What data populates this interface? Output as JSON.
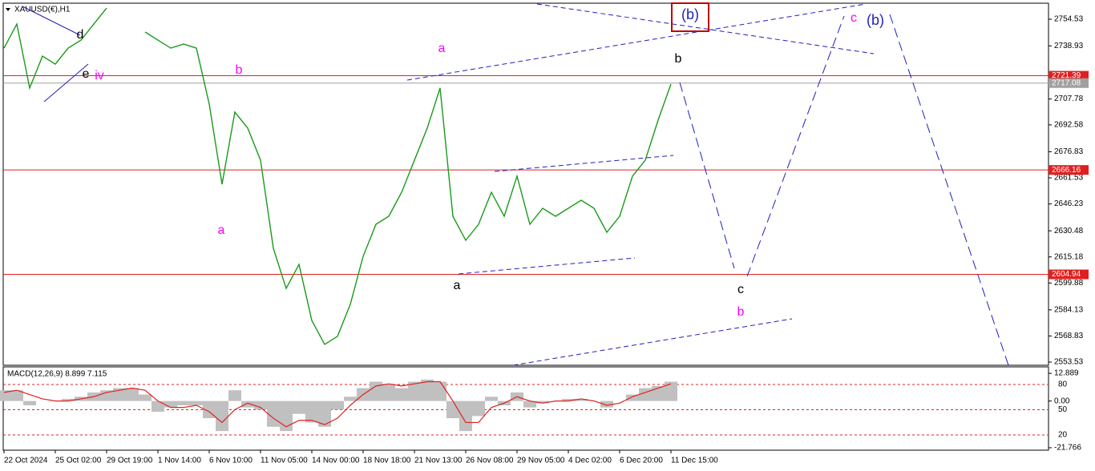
{
  "chart_data": [
    {
      "type": "line",
      "title": "XAUUSD(€),H1",
      "color": "#1a9a1a",
      "categories": [
        "22 Oct 2024",
        null,
        null,
        null,
        "25 Oct 02:00",
        null,
        null,
        null,
        "29 Oct 19:00",
        null,
        null,
        null,
        "1 Nov 14:00",
        null,
        null,
        null,
        "6 Nov 10:00",
        null,
        null,
        null,
        "11 Nov 05:00",
        null,
        null,
        null,
        "14 Nov 00:00",
        null,
        null,
        null,
        "18 Nov 18:00",
        null,
        null,
        null,
        "21 Nov 13:00",
        null,
        null,
        null,
        "26 Nov 08:00",
        null,
        null,
        null,
        "29 Nov 05:00",
        null,
        null,
        null,
        "4 Dec 02:00",
        null,
        null,
        null,
        "6 Dec 20:00",
        null,
        null,
        null,
        "11 Dec 15:00"
      ],
      "values": [
        2737.6,
        2751.7,
        2714.2,
        2732.9,
        2728.2,
        2737.6,
        2742.3,
        2751.7,
        2761.1,
        null,
        null,
        2747.0,
        2742.3,
        2737.6,
        2740.0,
        2737.6,
        2704.8,
        2657.8,
        2700.1,
        2690.7,
        2671.9,
        2620.2,
        2596.7,
        2610.8,
        2577.9,
        2563.9,
        2568.6,
        2587.4,
        2615.5,
        2634.3,
        2639.0,
        2653.1,
        2671.9,
        2690.7,
        2714.2,
        2639.0,
        2624.9,
        2634.3,
        2653.1,
        2639.0,
        2662.5,
        2634.3,
        2643.7,
        2639.0,
        2643.7,
        2648.4,
        2643.7,
        2629.6,
        2639.0,
        2662.5,
        2671.9,
        2695.4,
        2716.5
      ],
      "ylim": [
        2551.65,
        2763.45
      ],
      "yticks": [
        2754.53,
        2738.93,
        2707.78,
        2692.58,
        2676.83,
        2661.53,
        2646.23,
        2630.48,
        2615.18,
        2599.88,
        2584.13,
        2568.83,
        2553.53
      ],
      "hlines": [
        {
          "value": 2721.39,
          "color": "#e02020"
        },
        {
          "value": 2717.08,
          "color": "#a0a0a0"
        },
        {
          "value": 2666.16,
          "color": "#e02020"
        },
        {
          "value": 2604.94,
          "color": "#e02020"
        }
      ]
    },
    {
      "type": "macd",
      "title": "MACD(12,26,9) 8.899 7.115",
      "series": [
        {
          "color": "#c0c0c0",
          "values": [
            5,
            5,
            -2,
            0,
            0,
            1,
            2,
            4,
            5,
            6,
            6,
            3,
            -5,
            -3,
            -2,
            -2,
            -8,
            -14,
            5,
            -3,
            -4,
            -12,
            -14,
            -6,
            -10,
            -12,
            -4,
            2,
            6,
            9,
            8,
            6,
            9,
            10,
            9,
            -8,
            -14,
            -7,
            2,
            -2,
            4,
            -3,
            -1,
            0,
            1,
            1,
            0,
            -3,
            0,
            3,
            6,
            7,
            9
          ]
        },
        {
          "color": "#e02020",
          "values": [
            4,
            5,
            3,
            1,
            0,
            0,
            1,
            2,
            4,
            5,
            6,
            5,
            0,
            -3,
            -3,
            -2,
            -5,
            -10,
            -4,
            -1,
            -3,
            -8,
            -12,
            -9,
            -9,
            -11,
            -8,
            -2,
            3,
            7,
            8,
            7,
            8,
            9,
            9,
            0,
            -10,
            -10,
            -3,
            -1,
            2,
            0,
            -1,
            0,
            0,
            1,
            0,
            -2,
            -1,
            2,
            4,
            6,
            8
          ]
        }
      ],
      "ylim": [
        -22.9,
        15.9
      ],
      "yticks": [
        12.889,
        {
          "value": 0,
          "label": "0.00"
        },
        -21.766
      ],
      "y2lim": [
        1.9,
        101
      ],
      "y2ticks": [
        80,
        50,
        20
      ]
    }
  ],
  "wave_labels": [
    "d",
    "e",
    "iv",
    "b",
    "a",
    "a",
    "a",
    "b",
    "c",
    "b",
    "(b)",
    "c",
    "(b)"
  ]
}
